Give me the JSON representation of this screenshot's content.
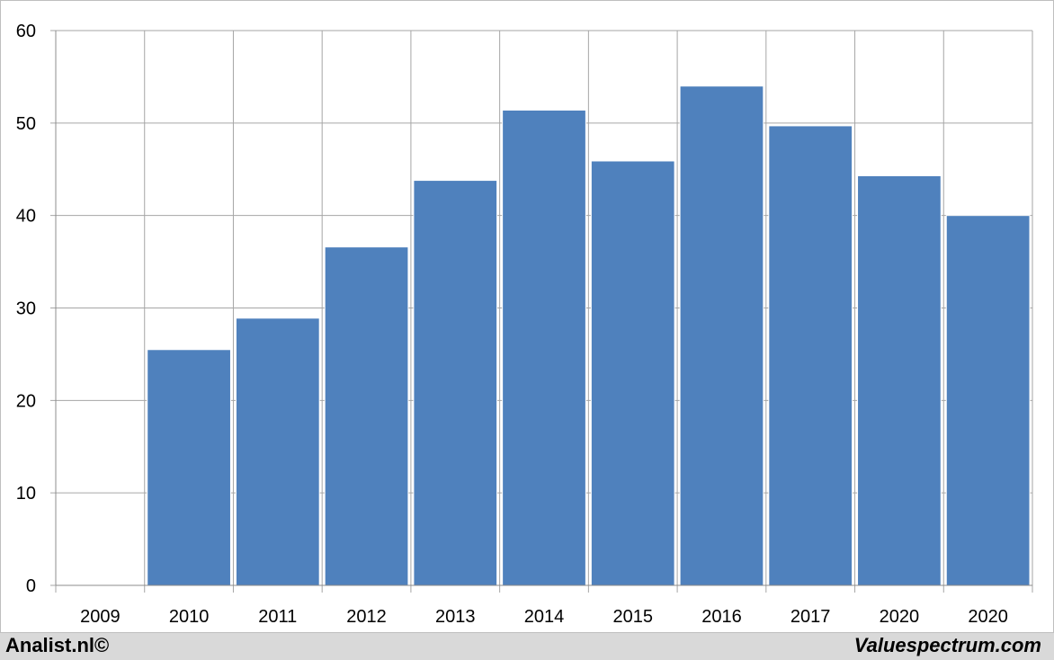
{
  "chart_data": {
    "type": "bar",
    "categories": [
      "2009",
      "2010",
      "2011",
      "2012",
      "2013",
      "2014",
      "2015",
      "2016",
      "2017",
      "2020",
      "2020"
    ],
    "values": [
      0,
      25.5,
      28.9,
      36.6,
      43.8,
      51.4,
      45.9,
      54.0,
      49.7,
      44.3,
      40.0
    ],
    "ylim": [
      0,
      60
    ],
    "yticks": [
      "0",
      "10",
      "20",
      "30",
      "40",
      "50",
      "60"
    ],
    "grid": true,
    "colors": {
      "bar": "#4f81bd",
      "grid": "#a6a6a6"
    }
  },
  "footer": {
    "left": "Analist.nl©",
    "right": "Valuespectrum.com"
  }
}
